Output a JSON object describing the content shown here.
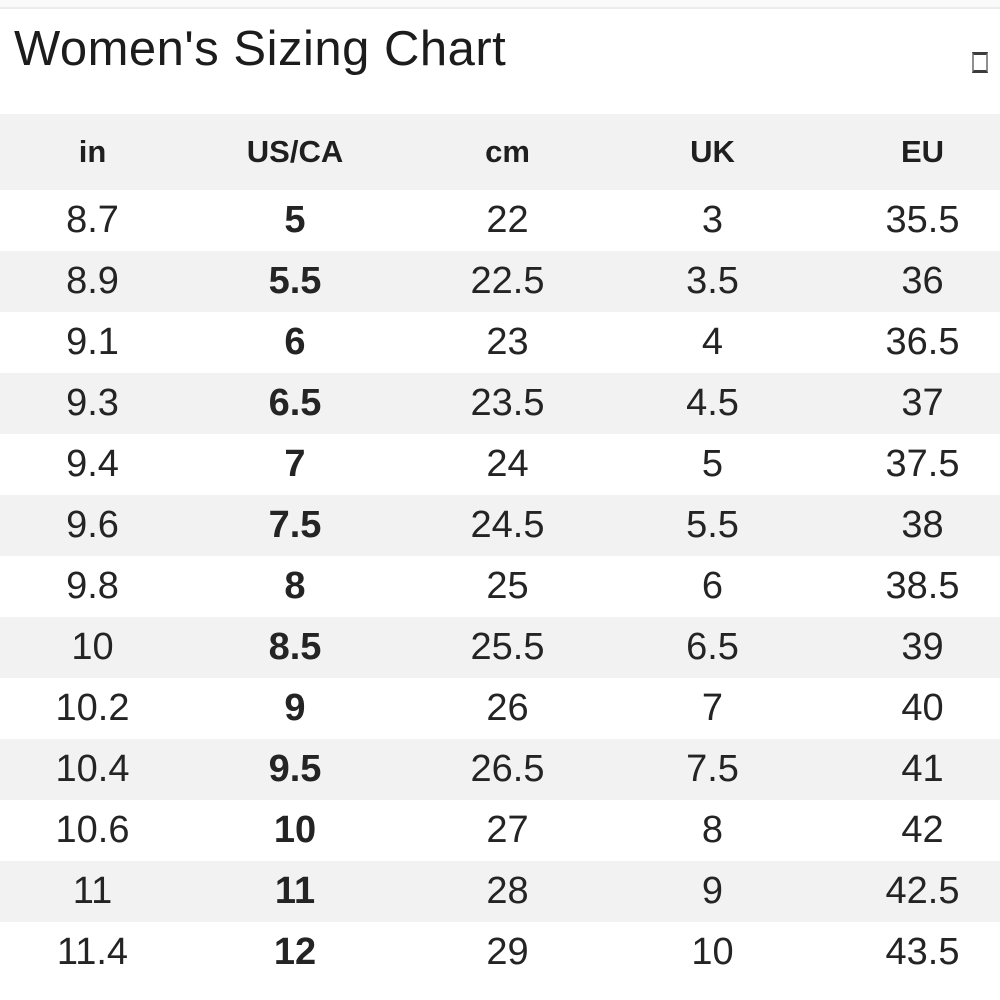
{
  "page": {
    "title": "Women's Sizing Chart"
  },
  "icons": {
    "top_right": "placeholder-square-icon"
  },
  "colors": {
    "background": "#ffffff",
    "stripe": "#f2f2f2",
    "header_bg": "#f2f2f2",
    "text": "#242424",
    "title_text": "#1c1c1c"
  },
  "table": {
    "columns": [
      "in",
      "US/CA",
      "cm",
      "UK",
      "EU"
    ],
    "bold_column": "US/CA",
    "rows": [
      [
        "8.7",
        "5",
        "22",
        "3",
        "35.5"
      ],
      [
        "8.9",
        "5.5",
        "22.5",
        "3.5",
        "36"
      ],
      [
        "9.1",
        "6",
        "23",
        "4",
        "36.5"
      ],
      [
        "9.3",
        "6.5",
        "23.5",
        "4.5",
        "37"
      ],
      [
        "9.4",
        "7",
        "24",
        "5",
        "37.5"
      ],
      [
        "9.6",
        "7.5",
        "24.5",
        "5.5",
        "38"
      ],
      [
        "9.8",
        "8",
        "25",
        "6",
        "38.5"
      ],
      [
        "10",
        "8.5",
        "25.5",
        "6.5",
        "39"
      ],
      [
        "10.2",
        "9",
        "26",
        "7",
        "40"
      ],
      [
        "10.4",
        "9.5",
        "26.5",
        "7.5",
        "41"
      ],
      [
        "10.6",
        "10",
        "27",
        "8",
        "42"
      ],
      [
        "11",
        "11",
        "28",
        "9",
        "42.5"
      ],
      [
        "11.4",
        "12",
        "29",
        "10",
        "43.5"
      ]
    ]
  }
}
